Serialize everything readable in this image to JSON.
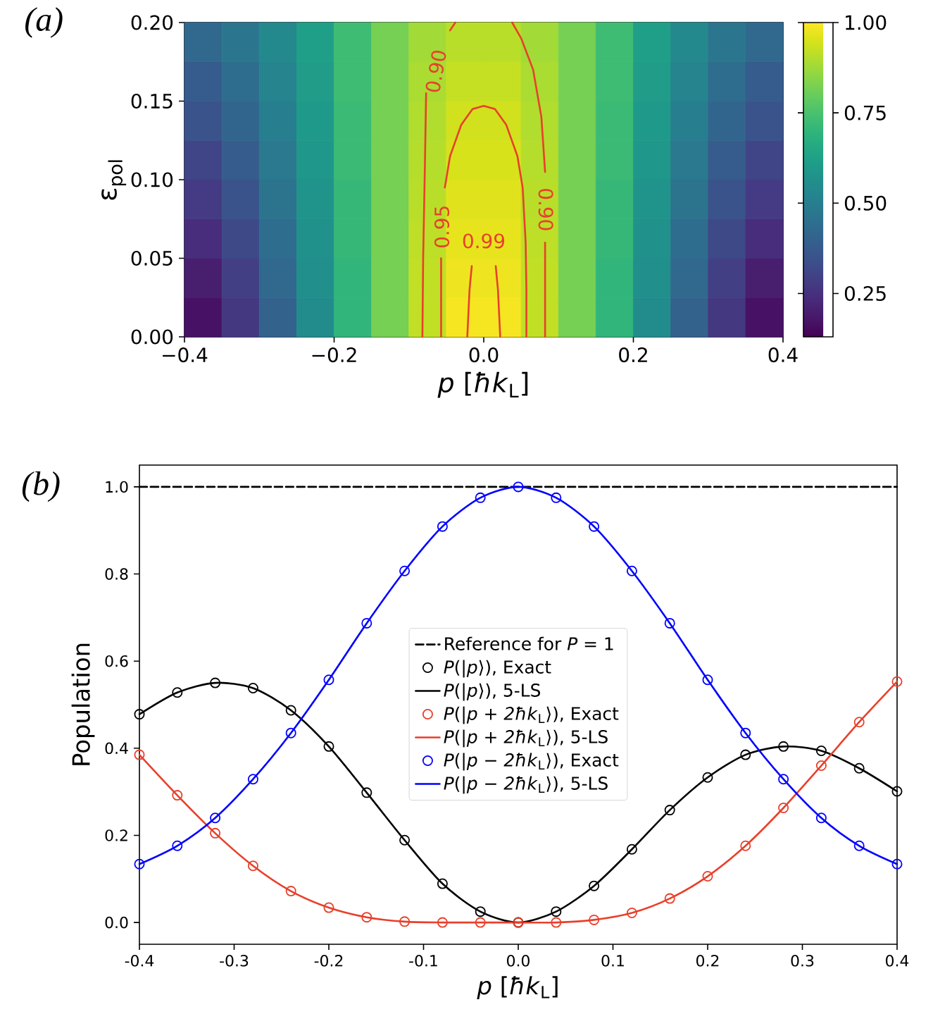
{
  "chart_data": [
    {
      "type": "heatmap",
      "xlabel": "*p* [*ħk*$_{L}$]",
      "ylabel": "ε$_{pol}$",
      "cells": [
        [
          0.42,
          0.47,
          0.54,
          0.62,
          0.73,
          0.82,
          0.88,
          0.91,
          0.91,
          0.88,
          0.82,
          0.73,
          0.62,
          0.54,
          0.47,
          0.42
        ],
        [
          0.38,
          0.44,
          0.52,
          0.61,
          0.73,
          0.82,
          0.89,
          0.925,
          0.925,
          0.89,
          0.82,
          0.73,
          0.61,
          0.52,
          0.44,
          0.38
        ],
        [
          0.35,
          0.41,
          0.5,
          0.6,
          0.72,
          0.82,
          0.9,
          0.94,
          0.94,
          0.9,
          0.82,
          0.72,
          0.6,
          0.5,
          0.41,
          0.35
        ],
        [
          0.31,
          0.38,
          0.48,
          0.59,
          0.72,
          0.82,
          0.905,
          0.95,
          0.95,
          0.905,
          0.82,
          0.72,
          0.59,
          0.48,
          0.38,
          0.31
        ],
        [
          0.28,
          0.35,
          0.46,
          0.58,
          0.71,
          0.82,
          0.91,
          0.96,
          0.96,
          0.91,
          0.82,
          0.71,
          0.58,
          0.46,
          0.35,
          0.28
        ],
        [
          0.24,
          0.32,
          0.44,
          0.57,
          0.71,
          0.82,
          0.915,
          0.97,
          0.97,
          0.915,
          0.82,
          0.71,
          0.57,
          0.44,
          0.32,
          0.24
        ],
        [
          0.2,
          0.29,
          0.42,
          0.56,
          0.7,
          0.82,
          0.92,
          0.98,
          0.98,
          0.92,
          0.82,
          0.7,
          0.56,
          0.42,
          0.29,
          0.2
        ],
        [
          0.17,
          0.27,
          0.4,
          0.55,
          0.7,
          0.82,
          0.92,
          0.99,
          0.99,
          0.92,
          0.82,
          0.7,
          0.55,
          0.4,
          0.27,
          0.17
        ]
      ],
      "clim": [
        0.13,
        1.0
      ],
      "cticks": [
        {
          "value": 0.25,
          "label": "0.25"
        },
        {
          "value": 0.5,
          "label": "0.50"
        },
        {
          "value": 0.75,
          "label": "0.75"
        },
        {
          "value": 1.0,
          "label": "1.00"
        }
      ],
      "xlim": [
        -0.4,
        0.4
      ],
      "ylim": [
        0,
        0.2
      ],
      "xticks": [
        {
          "value": -0.4,
          "label": "−0.4"
        },
        {
          "value": -0.2,
          "label": "−0.2"
        },
        {
          "value": 0,
          "label": "0.0"
        },
        {
          "value": 0.2,
          "label": "0.2"
        },
        {
          "value": 0.4,
          "label": "0.4"
        }
      ],
      "yticks": [
        {
          "value": 0,
          "label": "0.00"
        },
        {
          "value": 0.05,
          "label": "0.05"
        },
        {
          "value": 0.1,
          "label": "0.10"
        },
        {
          "value": 0.15,
          "label": "0.15"
        },
        {
          "value": 0.2,
          "label": "0.20"
        }
      ],
      "series": [
        {
          "type": "line",
          "color": "#e8402b",
          "x": [
            -0.082,
            -0.081,
            -0.079,
            -0.077
          ],
          "values": [
            0,
            0.05,
            0.1,
            0.155
          ]
        },
        {
          "type": "line",
          "color": "#e8402b",
          "x": [
            -0.045,
            -0.038
          ],
          "values": [
            0.195,
            0.2
          ]
        },
        {
          "type": "line",
          "color": "#e8402b",
          "x": [
            0.082,
            0.082
          ],
          "values": [
            0,
            0.06
          ]
        },
        {
          "type": "line",
          "color": "#e8402b",
          "x": [
            0.082,
            0.077,
            0.066,
            0.05,
            0.038
          ],
          "values": [
            0.105,
            0.14,
            0.17,
            0.19,
            0.2
          ]
        },
        {
          "type": "line",
          "color": "#e8402b",
          "x": [
            -0.057,
            -0.057
          ],
          "values": [
            0,
            0.05
          ]
        },
        {
          "type": "line",
          "color": "#e8402b",
          "x": [
            -0.052,
            -0.045,
            -0.03,
            -0.015,
            0,
            0.015,
            0.03,
            0.045,
            0.052,
            0.056,
            0.057,
            0.057
          ],
          "values": [
            0.095,
            0.115,
            0.135,
            0.145,
            0.147,
            0.145,
            0.135,
            0.115,
            0.095,
            0.06,
            0.03,
            0
          ]
        },
        {
          "type": "line",
          "color": "#e8402b",
          "x": [
            -0.022,
            -0.019,
            -0.016
          ],
          "values": [
            0,
            0.03,
            0.045
          ]
        },
        {
          "type": "line",
          "color": "#e8402b",
          "x": [
            0.016,
            0.019,
            0.022
          ],
          "values": [
            0.045,
            0.03,
            0
          ]
        }
      ],
      "annotations": [
        "(a)",
        "0.90",
        "0.95",
        "0.99",
        "0.90"
      ]
    },
    {
      "type": "line",
      "xlabel": "*p* [*ħk*$_{L}$]",
      "ylabel": "Population",
      "x": [
        -0.4,
        -0.36,
        -0.32,
        -0.28,
        -0.24,
        -0.2,
        -0.16,
        -0.12,
        -0.08,
        -0.04,
        0,
        0.04,
        0.08,
        0.12,
        0.16,
        0.2,
        0.24,
        0.28,
        0.32,
        0.36,
        0.4
      ],
      "xlim": [
        -0.4,
        0.4
      ],
      "ylim": [
        -0.05,
        1.05
      ],
      "xticks": [
        {
          "value": -0.4,
          "label": "-0.4"
        },
        {
          "value": -0.3,
          "label": "-0.3"
        },
        {
          "value": -0.2,
          "label": "-0.2"
        },
        {
          "value": -0.1,
          "label": "-0.1"
        },
        {
          "value": 0,
          "label": "0.0"
        },
        0.1,
        0.2,
        0.3,
        0.4
      ],
      "yticks": [
        {
          "value": 0,
          "label": "0.0"
        },
        0.2,
        0.4,
        0.6,
        0.8,
        {
          "value": 1,
          "label": "1.0"
        }
      ],
      "legend": "center",
      "series": [
        {
          "type": "line",
          "name": "Reference for *P* = 1",
          "color": "#000000",
          "line_style": "dashed",
          "x": [
            -0.4,
            0.4
          ],
          "values": [
            1,
            1
          ]
        },
        {
          "type": "scatter",
          "marker": "circle",
          "name": "*P*(|*p*⟩), Exact",
          "color": "#000000",
          "values": [
            0.478,
            0.528,
            0.55,
            0.538,
            0.487,
            0.404,
            0.298,
            0.189,
            0.089,
            0.025,
            0,
            0.025,
            0.084,
            0.168,
            0.258,
            0.333,
            0.385,
            0.404,
            0.394,
            0.354,
            0.301
          ]
        },
        {
          "type": "line",
          "name": "*P*(|*p*⟩), 5-LS",
          "color": "#000000",
          "values": [
            0.478,
            0.528,
            0.55,
            0.538,
            0.487,
            0.404,
            0.298,
            0.189,
            0.089,
            0.025,
            0,
            0.025,
            0.084,
            0.168,
            0.258,
            0.333,
            0.385,
            0.404,
            0.394,
            0.354,
            0.301
          ]
        },
        {
          "type": "scatter",
          "marker": "circle",
          "name": "*P*(|*p* + *2ħk*$_{L}$⟩), Exact",
          "color": "#e8402b",
          "values": [
            0.385,
            0.292,
            0.205,
            0.13,
            0.072,
            0.034,
            0.012,
            0.002,
            0,
            0,
            0,
            0,
            0.006,
            0.022,
            0.055,
            0.106,
            0.176,
            0.263,
            0.36,
            0.46,
            0.553
          ]
        },
        {
          "type": "line",
          "name": "*P*(|*p* + *2ħk*$_{L}$⟩), 5-LS",
          "color": "#e8402b",
          "values": [
            0.385,
            0.292,
            0.205,
            0.13,
            0.072,
            0.034,
            0.012,
            0.002,
            0,
            0,
            0,
            0,
            0.006,
            0.022,
            0.055,
            0.106,
            0.176,
            0.263,
            0.36,
            0.46,
            0.553
          ]
        },
        {
          "type": "scatter",
          "marker": "circle",
          "name": "*P*(|*p* − *2ħk*$_{L}$⟩), Exact",
          "color": "#0000ff",
          "values": [
            0.134,
            0.176,
            0.24,
            0.329,
            0.435,
            0.557,
            0.687,
            0.807,
            0.909,
            0.975,
            1,
            0.975,
            0.909,
            0.807,
            0.687,
            0.557,
            0.435,
            0.329,
            0.24,
            0.176,
            0.134
          ]
        },
        {
          "type": "line",
          "name": "*P*(|*p* − *2ħk*$_{L}$⟩), 5-LS",
          "color": "#0000ff",
          "values": [
            0.134,
            0.176,
            0.24,
            0.329,
            0.435,
            0.557,
            0.687,
            0.807,
            0.909,
            0.975,
            1,
            0.975,
            0.909,
            0.807,
            0.687,
            0.557,
            0.435,
            0.329,
            0.24,
            0.176,
            0.134
          ]
        }
      ],
      "annotations": [
        "(b)"
      ]
    }
  ]
}
